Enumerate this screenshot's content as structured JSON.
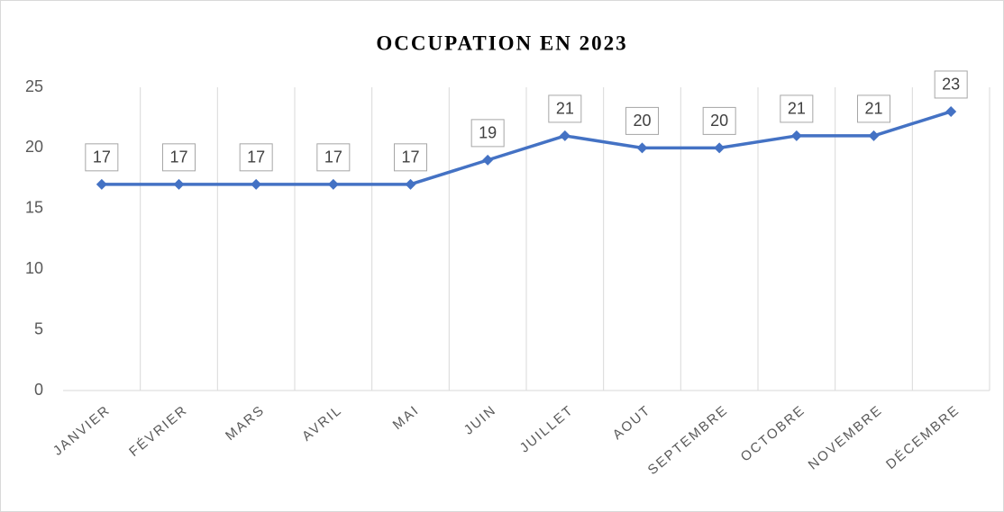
{
  "chart_data": {
    "type": "line",
    "title": "OCCUPATION EN 2023",
    "categories": [
      "JANVIER",
      "FÉVRIER",
      "MARS",
      "AVRIL",
      "MAI",
      "JUIN",
      "JUILLET",
      "AOUT",
      "SEPTEMBRE",
      "OCTOBRE",
      "NOVEMBRE",
      "DÉCEMBRE"
    ],
    "values": [
      17,
      17,
      17,
      17,
      17,
      19,
      21,
      20,
      20,
      21,
      21,
      23
    ],
    "color": "#4472c4",
    "ylim": [
      0,
      25
    ],
    "yticks": [
      0,
      5,
      10,
      15,
      20,
      25
    ],
    "grid": true
  }
}
